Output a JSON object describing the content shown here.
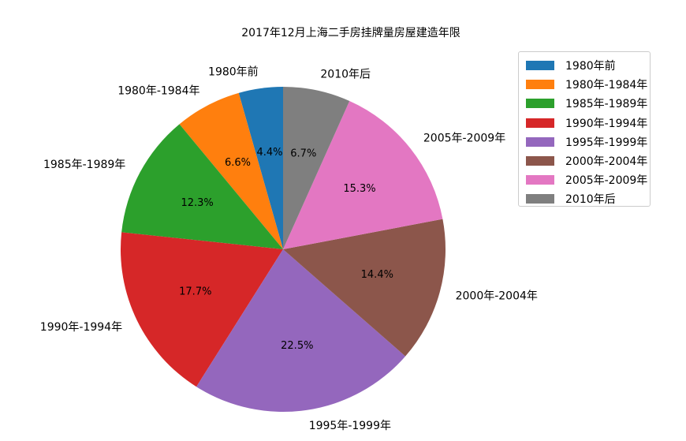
{
  "chart_data": {
    "type": "pie",
    "title": "2017年12月上海二手房挂牌量房屋建造年限",
    "categories": [
      "1980年前",
      "1980年-1984年",
      "1985年-1989年",
      "1990年-1994年",
      "1995年-1999年",
      "2000年-2004年",
      "2005年-2009年",
      "2010年后"
    ],
    "values": [
      4.4,
      6.6,
      12.3,
      17.7,
      22.5,
      14.4,
      15.3,
      6.7
    ],
    "value_labels": [
      "4.4%",
      "6.6%",
      "12.3%",
      "17.7%",
      "22.5%",
      "14.4%",
      "15.3%",
      "6.7%"
    ],
    "colors": [
      "#1f77b4",
      "#ff7f0e",
      "#2ca02c",
      "#d62728",
      "#9467bd",
      "#8c564b",
      "#e377c2",
      "#7f7f7f"
    ],
    "start_angle_deg": 90,
    "direction": "counterclockwise",
    "legend": {
      "placement": "top-right",
      "entries": [
        "1980年前",
        "1980年-1984年",
        "1985年-1989年",
        "1990年-1994年",
        "1995年-1999年",
        "2000年-2004年",
        "2005年-2009年",
        "2010年后"
      ]
    }
  }
}
